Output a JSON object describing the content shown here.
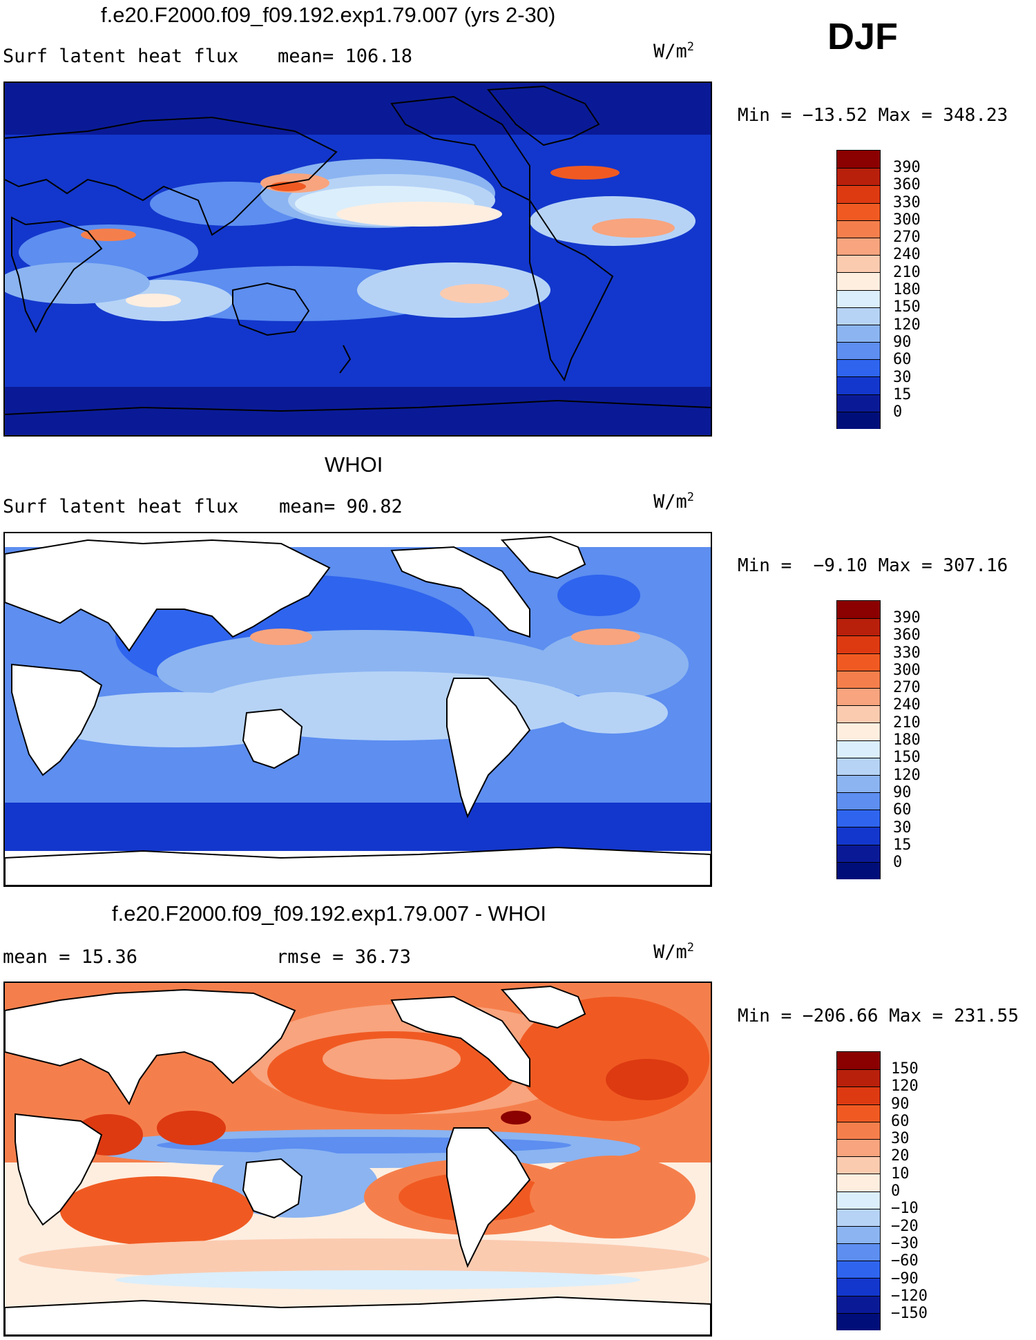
{
  "season": "DJF",
  "units": {
    "base": "W/m",
    "exp": "2"
  },
  "panels": [
    {
      "title": "f.e20.F2000.f09_f09.192.exp1.79.007 (yrs 2-30)",
      "left": "Surf latent heat flux",
      "right": "mean= 106.18",
      "minmax": "Min = −13.52 Max = 348.23",
      "levels": [
        "390",
        "360",
        "330",
        "300",
        "270",
        "240",
        "210",
        "180",
        "150",
        "120",
        "90",
        "60",
        "30",
        "15",
        "0"
      ],
      "colors": [
        "#8b0000",
        "#b8200c",
        "#dd3a12",
        "#f05a22",
        "#f57f4c",
        "#f8a47e",
        "#fbcbb0",
        "#fdeee0",
        "#dbeefb",
        "#b6d3f6",
        "#8bb4f1",
        "#5d8ef0",
        "#2f64ee",
        "#1337cc",
        "#0a1a96",
        "#000e7a"
      ]
    },
    {
      "title": "WHOI",
      "left": "Surf latent heat flux",
      "right": "mean=  90.82",
      "minmax": "Min =  −9.10 Max = 307.16",
      "levels": [
        "390",
        "360",
        "330",
        "300",
        "270",
        "240",
        "210",
        "180",
        "150",
        "120",
        "90",
        "60",
        "30",
        "15",
        "0"
      ],
      "colors": [
        "#8b0000",
        "#b8200c",
        "#dd3a12",
        "#f05a22",
        "#f57f4c",
        "#f8a47e",
        "#fbcbb0",
        "#fdeee0",
        "#dbeefb",
        "#b6d3f6",
        "#8bb4f1",
        "#5d8ef0",
        "#2f64ee",
        "#1337cc",
        "#0a1a96",
        "#000e7a"
      ]
    },
    {
      "title": "f.e20.F2000.f09_f09.192.exp1.79.007 - WHOI",
      "left": "mean =   15.36",
      "right": "rmse =   36.73",
      "minmax": "Min = −206.66 Max = 231.55",
      "levels": [
        "150",
        "120",
        "90",
        "60",
        "30",
        "20",
        "10",
        "0",
        "−10",
        "−20",
        "−30",
        "−60",
        "−90",
        "−120",
        "−150"
      ],
      "colors": [
        "#8b0000",
        "#b8200c",
        "#dd3a12",
        "#f05a22",
        "#f57f4c",
        "#f8a47e",
        "#fbcbb0",
        "#fdeee0",
        "#dbeefb",
        "#b6d3f6",
        "#8bb4f1",
        "#5d8ef0",
        "#2f64ee",
        "#1337cc",
        "#0a1a96",
        "#000e7a"
      ]
    }
  ]
}
